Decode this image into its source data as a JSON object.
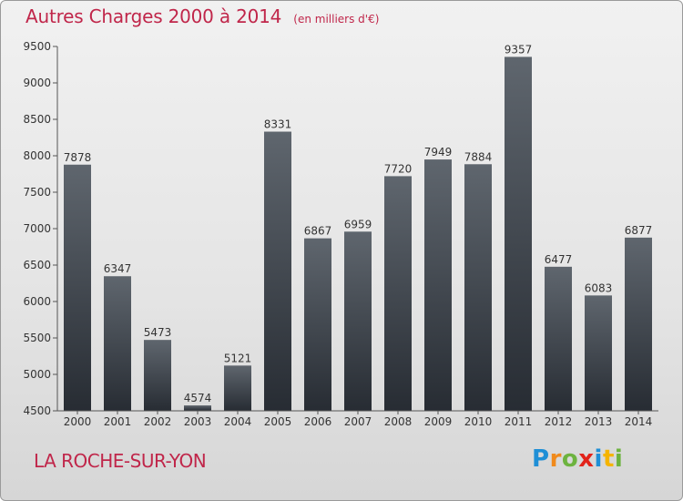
{
  "page": {
    "title": "Autres Charges 2000 à 2014",
    "subtitle": "(en milliers d'€)",
    "city": "LA ROCHE-SUR-YON",
    "brand": {
      "letters": [
        {
          "char": "P",
          "color": "#1f8fd6"
        },
        {
          "char": "r",
          "color": "#f08a1c"
        },
        {
          "char": "o",
          "color": "#6db33f"
        },
        {
          "char": "x",
          "color": "#e2231a"
        },
        {
          "char": "i",
          "color": "#1f8fd6"
        },
        {
          "char": "t",
          "color": "#f5b400"
        },
        {
          "char": "i",
          "color": "#6db33f"
        }
      ]
    }
  },
  "chart_data": {
    "type": "bar",
    "title": "Autres Charges 2000 à 2014",
    "subtitle": "(en milliers d'€)",
    "categories": [
      "2000",
      "2001",
      "2002",
      "2003",
      "2004",
      "2005",
      "2006",
      "2007",
      "2008",
      "2009",
      "2010",
      "2011",
      "2012",
      "2013",
      "2014"
    ],
    "values": [
      7878,
      6347,
      5473,
      4574,
      5121,
      8331,
      6867,
      6959,
      7720,
      7949,
      7884,
      9357,
      6477,
      6083,
      6877
    ],
    "ylim": [
      4500,
      9500
    ],
    "yticks": [
      4500,
      5000,
      5500,
      6000,
      6500,
      7000,
      7500,
      8000,
      8500,
      9000,
      9500
    ],
    "grid": false,
    "bar_color": "#3f454d"
  }
}
